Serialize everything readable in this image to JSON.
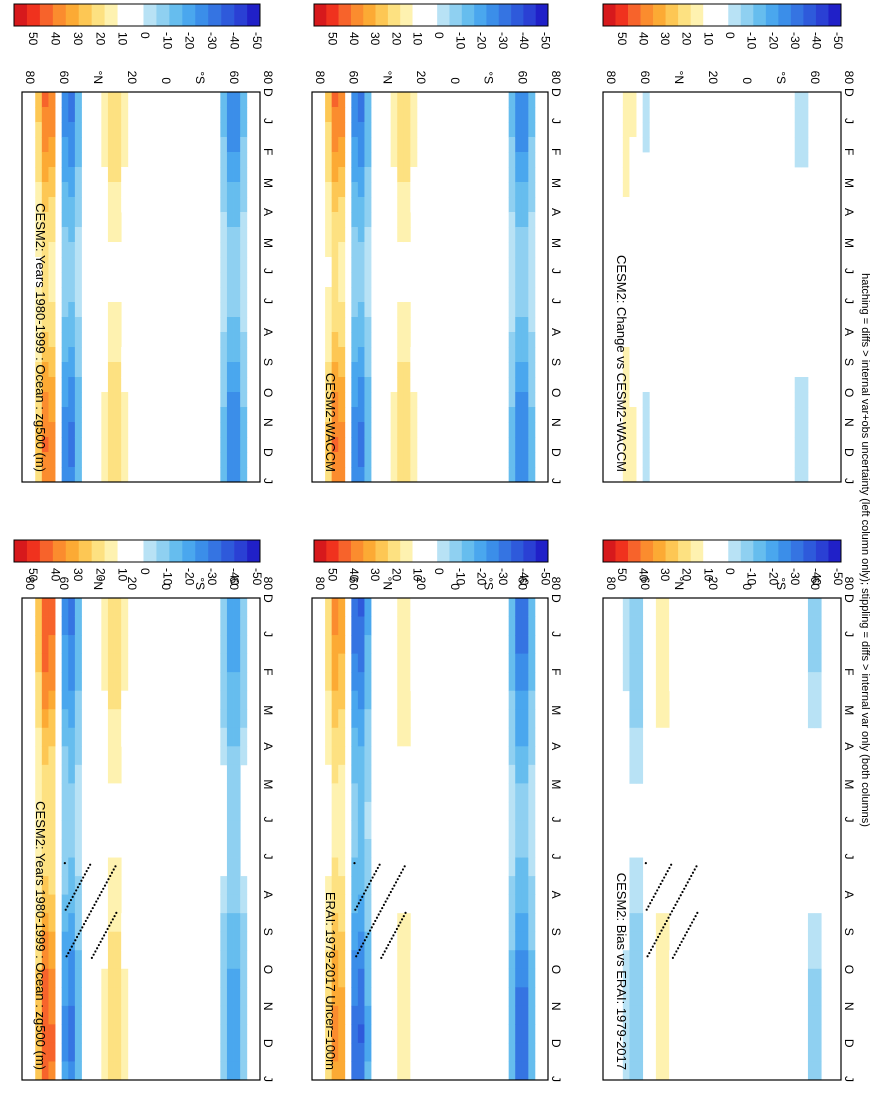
{
  "footer_note": "hatching = diffs > internal var+obs uncertainty (left column only); stippling = diffs > internal var only (both columns)",
  "colorbar_ticks": [
    "50",
    "40",
    "30",
    "20",
    "10",
    "0",
    "-10",
    "-20",
    "-30",
    "-40",
    "-50"
  ],
  "colorbar_colors": [
    "#d7191c",
    "#f0321e",
    "#f7632b",
    "#fb8c2e",
    "#fcaa34",
    "#fdc754",
    "#fde181",
    "#fef2b0",
    "#ffffff",
    "#ffffff",
    "#b8e2f5",
    "#8fd0f1",
    "#66bdee",
    "#4aa7ee",
    "#3b8ee9",
    "#3574e2",
    "#2e5adb",
    "#2a40d4",
    "#2020c8"
  ],
  "months": [
    "D",
    "J",
    "F",
    "M",
    "A",
    "M",
    "J",
    "J",
    "A",
    "S",
    "O",
    "N",
    "D",
    "J"
  ],
  "lat_ticks": [
    "80",
    "60",
    "°N",
    "20",
    "0",
    "°S",
    "60",
    "80"
  ],
  "chart_data": [
    {
      "type": "heatmap",
      "title": "CESM2: Years 1980-1999 : Ocean : zg500 (m)",
      "x_axis": "month (D, J ... D, J)",
      "y_axis": "latitude 90N to 90S",
      "zlim": [
        -50,
        50
      ],
      "features": [
        {
          "lat": 55,
          "sign": "negative",
          "peak": -35
        },
        {
          "lat": 70,
          "sign": "positive",
          "peak": 45
        },
        {
          "lat": 20,
          "sign": "positive",
          "peak": 20
        },
        {
          "lat": -70,
          "sign": "negative",
          "peak": -25
        }
      ],
      "stippling": true
    },
    {
      "type": "heatmap",
      "title": "CESM2: Years 1980-1999 : Ocean : zg500 (m)",
      "zlim": [
        -50,
        50
      ],
      "features": [
        {
          "lat": 55,
          "sign": "negative",
          "peak": -35
        },
        {
          "lat": 70,
          "sign": "positive",
          "peak": 40
        },
        {
          "lat": 20,
          "sign": "positive",
          "peak": 20
        },
        {
          "lat": -70,
          "sign": "negative",
          "peak": -30
        }
      ],
      "stippling": false
    },
    {
      "type": "heatmap",
      "title": "ERAI: 1979-2017 Uncer=100m",
      "zlim": [
        -50,
        50
      ],
      "features": [
        {
          "lat": 55,
          "sign": "negative",
          "peak": -40
        },
        {
          "lat": 70,
          "sign": "positive",
          "peak": 35
        },
        {
          "lat": 20,
          "sign": "positive",
          "peak": 15
        },
        {
          "lat": -70,
          "sign": "negative",
          "peak": -35
        }
      ],
      "stippling": true
    },
    {
      "type": "heatmap",
      "title": "CESM2-WACCM",
      "zlim": [
        -50,
        50
      ],
      "features": [
        {
          "lat": 55,
          "sign": "negative",
          "peak": -35
        },
        {
          "lat": 70,
          "sign": "positive",
          "peak": 40
        },
        {
          "lat": 20,
          "sign": "positive",
          "peak": 20
        },
        {
          "lat": -70,
          "sign": "negative",
          "peak": -30
        }
      ],
      "stippling": false
    },
    {
      "type": "heatmap",
      "title": "CESM2: Bias vs ERAI: 1979-2017",
      "zlim": [
        -50,
        50
      ],
      "features": [
        {
          "lat": 45,
          "sign": "positive",
          "peak": 15
        },
        {
          "lat": 65,
          "sign": "negative",
          "peak": -15
        },
        {
          "lat": -70,
          "sign": "negative",
          "peak": -10
        }
      ],
      "stippling": true
    },
    {
      "type": "heatmap",
      "title": "CESM2: Change vs CESM2-WACCM",
      "zlim": [
        -50,
        50
      ],
      "features": [
        {
          "lat": 60,
          "sign": "negative",
          "peak": -10
        },
        {
          "lat": 70,
          "sign": "positive",
          "peak": 15
        },
        {
          "lat": -60,
          "sign": "negative",
          "peak": -8
        }
      ],
      "stippling": false
    }
  ]
}
